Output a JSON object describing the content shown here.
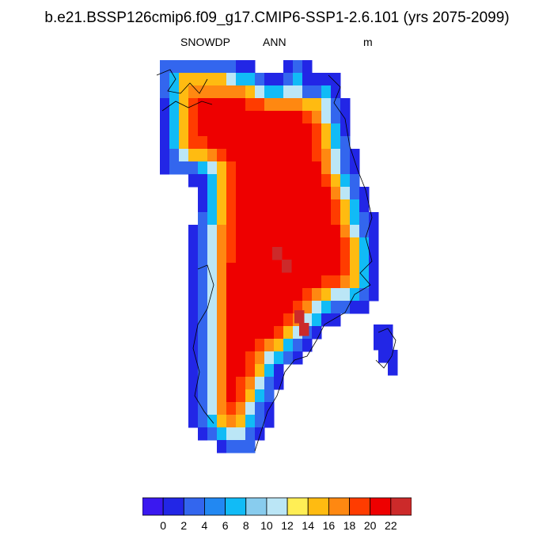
{
  "title": "b.e21.BSSP126cmip6.f09_g17.CMIP6-SSP1-2.6.101 (yrs 2075-2099)",
  "subtitle": {
    "left": "SNOWDP",
    "center": "ANN",
    "right": "m"
  },
  "colorbar": {
    "colors": [
      "#3a18f0",
      "#2226e6",
      "#3366ee",
      "#2288f2",
      "#11bbf6",
      "#88ccee",
      "#bbe6f6",
      "#ffee55",
      "#ffbb11",
      "#ff8811",
      "#ff3c00",
      "#ee0000",
      "#cc2a2a"
    ],
    "tick_labels": [
      "0",
      "2",
      "4",
      "6",
      "8",
      "10",
      "12",
      "14",
      "16",
      "18",
      "20",
      "22"
    ]
  },
  "chart_data": {
    "type": "heatmap",
    "variable": "SNOWDP",
    "period": "ANN",
    "units": "m",
    "region": "Greenland",
    "contour_levels": [
      0,
      2,
      4,
      6,
      8,
      10,
      12,
      14,
      16,
      18,
      20,
      22
    ],
    "description_values": {
      "interior_max_approx": 22,
      "coastal_margin_min_approx": 0
    }
  }
}
